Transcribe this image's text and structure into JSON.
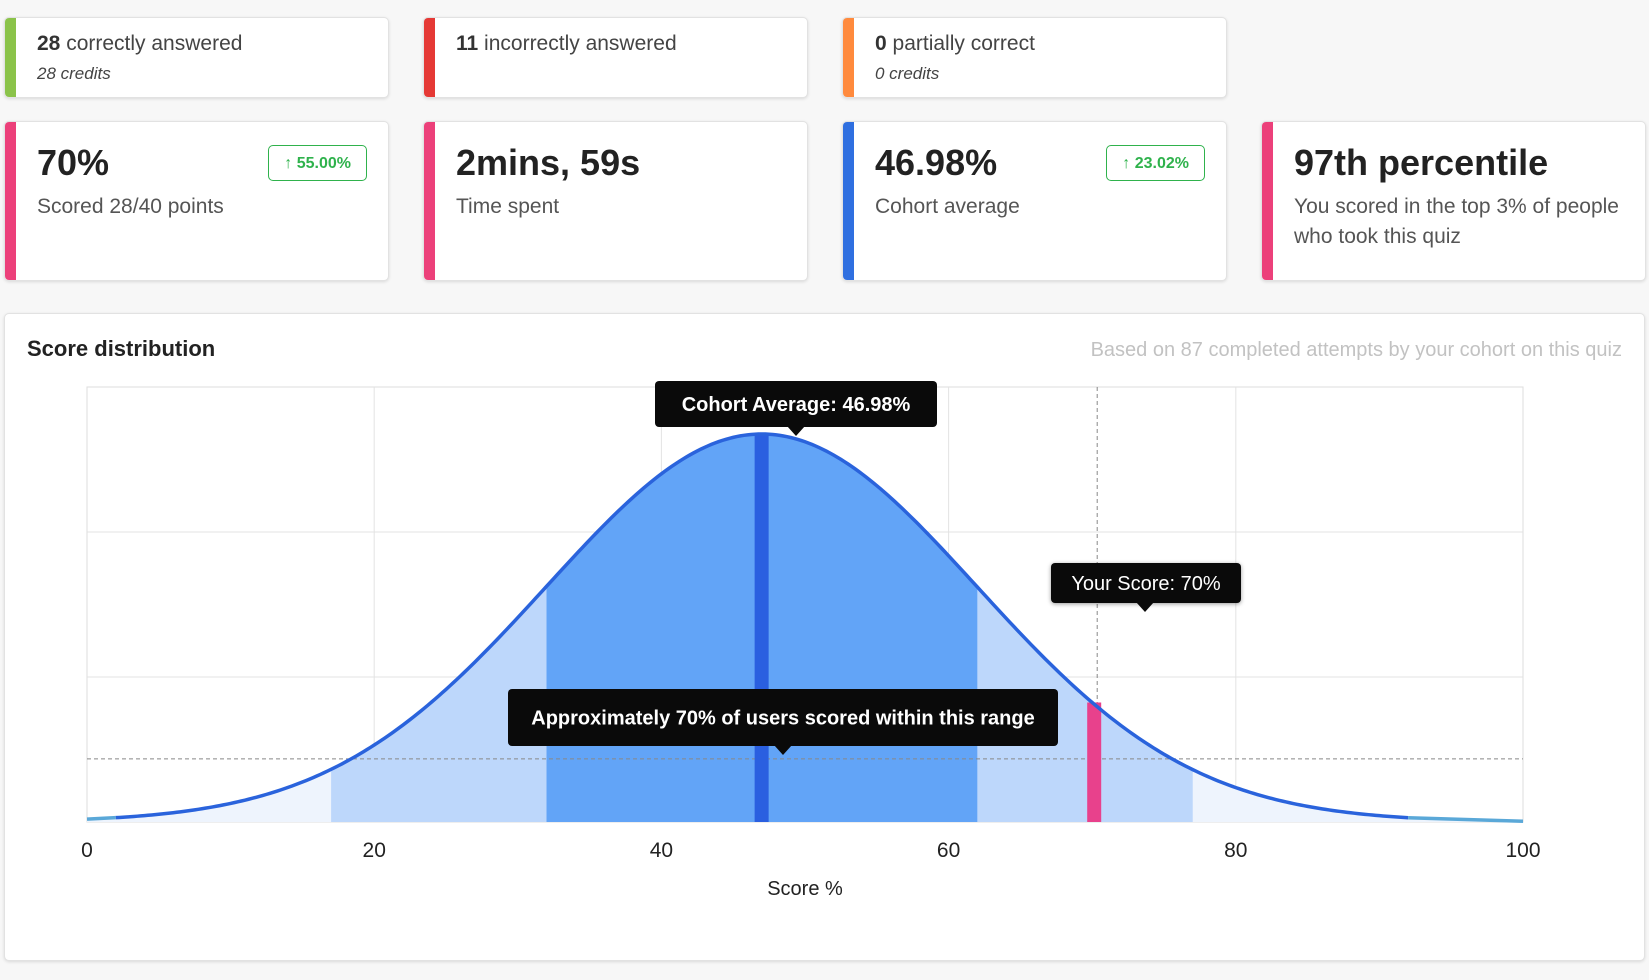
{
  "stats": {
    "correct": {
      "count": "28",
      "label": "correctly answered",
      "sub": "28 credits",
      "color": "#8bc34a"
    },
    "incorrect": {
      "count": "11",
      "label": "incorrectly answered",
      "color": "#e53935"
    },
    "partial": {
      "count": "0",
      "label": "partially correct",
      "sub": "0 credits",
      "color": "#ff8a3d"
    }
  },
  "metrics": {
    "score": {
      "value": "70%",
      "desc": "Scored 28/40 points",
      "badge": "↑ 55.00%",
      "color": "#ec407a"
    },
    "time": {
      "value": "2mins, 59s",
      "desc": "Time spent",
      "color": "#ec407a"
    },
    "cohort": {
      "value": "46.98%",
      "desc": "Cohort average",
      "badge": "↑ 23.02%",
      "color": "#2f6fe0"
    },
    "percentile": {
      "value": "97th percentile",
      "desc": "You scored in the top 3% of people who took this quiz",
      "color": "#ec407a"
    }
  },
  "distribution": {
    "title": "Score distribution",
    "note": "Based on 87 completed attempts by your cohort on this quiz"
  },
  "chart_data": {
    "type": "area",
    "title": "Score distribution",
    "xlabel": "Score %",
    "ylabel": "",
    "xlim": [
      0,
      100
    ],
    "x_ticks": [
      0,
      20,
      40,
      60,
      80,
      100
    ],
    "grid": true,
    "curve": {
      "mean": 46.98,
      "sd": 15
    },
    "bands": [
      {
        "from": 17,
        "to": 77,
        "color": "#bdd7fb"
      },
      {
        "from": 32,
        "to": 62,
        "color": "#62a4f7"
      }
    ],
    "outer_tail_color": "#eef4fd",
    "line_color": "#2a63dc",
    "reference_y_fraction": 0.145,
    "markers": [
      {
        "x": 46.98,
        "color": "#2a5fe0",
        "label": "Cohort Average: 46.98%"
      },
      {
        "x": 70,
        "color": "#e8418c",
        "label": "Your Score: 70%"
      }
    ],
    "annotations": [
      {
        "text": "Approximately 70% of users scored within this range"
      }
    ]
  }
}
